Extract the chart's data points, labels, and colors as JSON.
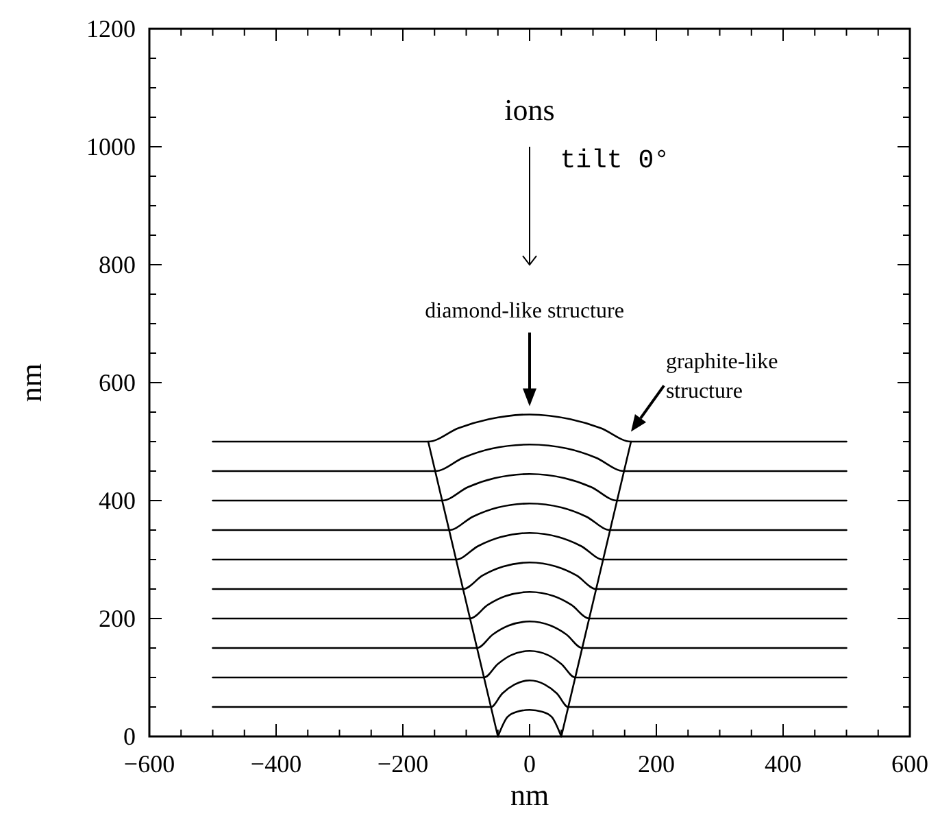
{
  "chart_data": {
    "type": "line",
    "xlabel": "nm",
    "ylabel": "nm",
    "xlim": [
      -600,
      600
    ],
    "ylim": [
      0,
      1200
    ],
    "xticks": [
      -600,
      {
        "value": -550,
        "label": null
      },
      {
        "value": -500,
        "label": null
      },
      {
        "value": -450,
        "label": null
      },
      -400,
      {
        "value": -350,
        "label": null
      },
      {
        "value": -300,
        "label": null
      },
      {
        "value": -250,
        "label": null
      },
      -200,
      {
        "value": -150,
        "label": null
      },
      {
        "value": -100,
        "label": null
      },
      {
        "value": -50,
        "label": null
      },
      0,
      {
        "value": 50,
        "label": null
      },
      {
        "value": 100,
        "label": null
      },
      {
        "value": 150,
        "label": null
      },
      200,
      {
        "value": 250,
        "label": null
      },
      {
        "value": 300,
        "label": null
      },
      {
        "value": 350,
        "label": null
      },
      400,
      {
        "value": 450,
        "label": null
      },
      {
        "value": 500,
        "label": null
      },
      {
        "value": 550,
        "label": null
      },
      600
    ],
    "yticks": [
      0,
      {
        "value": 50,
        "label": null
      },
      {
        "value": 100,
        "label": null
      },
      {
        "value": 150,
        "label": null
      },
      200,
      {
        "value": 250,
        "label": null
      },
      {
        "value": 300,
        "label": null
      },
      {
        "value": 350,
        "label": null
      },
      400,
      {
        "value": 450,
        "label": null
      },
      {
        "value": 500,
        "label": null
      },
      {
        "value": 550,
        "label": null
      },
      600,
      {
        "value": 650,
        "label": null
      },
      {
        "value": 700,
        "label": null
      },
      {
        "value": 750,
        "label": null
      },
      800,
      {
        "value": 850,
        "label": null
      },
      {
        "value": 900,
        "label": null
      },
      {
        "value": 950,
        "label": null
      },
      1000,
      {
        "value": 1050,
        "label": null
      },
      {
        "value": 1100,
        "label": null
      },
      {
        "value": 1150,
        "label": null
      },
      1200
    ],
    "grid": false,
    "marker": "none",
    "line_style": "solid",
    "annotations": [
      "ions",
      "tilt  0°",
      "diamond-like structure",
      "graphite-like\nstructure"
    ],
    "series": [
      {
        "color": "#000000",
        "x": [
          -50,
          -35,
          -20,
          0,
          20,
          35,
          50
        ],
        "values": [
          0,
          33,
          42,
          45,
          42,
          33,
          0
        ]
      },
      {
        "color": "#000000",
        "x": [
          -500,
          -61,
          -43,
          -24,
          0,
          24,
          43,
          61,
          500
        ],
        "values": [
          50,
          50,
          73,
          88,
          95,
          88,
          73,
          50,
          50
        ]
      },
      {
        "color": "#000000",
        "x": [
          -500,
          -72,
          -50,
          -29,
          0,
          29,
          50,
          72,
          500
        ],
        "values": [
          100,
          100,
          123,
          138,
          145,
          138,
          123,
          100,
          100
        ]
      },
      {
        "color": "#000000",
        "x": [
          -500,
          -83,
          -58,
          -33,
          0,
          33,
          58,
          83,
          500
        ],
        "values": [
          150,
          150,
          173,
          188,
          195,
          188,
          173,
          150,
          150
        ]
      },
      {
        "color": "#000000",
        "x": [
          -500,
          -94,
          -66,
          -38,
          0,
          38,
          66,
          94,
          500
        ],
        "values": [
          200,
          200,
          223,
          238,
          245,
          238,
          223,
          200,
          200
        ]
      },
      {
        "color": "#000000",
        "x": [
          -500,
          -105,
          -74,
          -42,
          0,
          42,
          74,
          105,
          500
        ],
        "values": [
          250,
          250,
          273,
          288,
          295,
          288,
          273,
          250,
          250
        ]
      },
      {
        "color": "#000000",
        "x": [
          -500,
          -116,
          -81,
          -46,
          0,
          46,
          81,
          116,
          500
        ],
        "values": [
          300,
          300,
          323,
          338,
          345,
          338,
          323,
          300,
          300
        ]
      },
      {
        "color": "#000000",
        "x": [
          -500,
          -127,
          -89,
          -51,
          0,
          51,
          89,
          127,
          500
        ],
        "values": [
          350,
          350,
          373,
          388,
          395,
          388,
          373,
          350,
          350
        ]
      },
      {
        "color": "#000000",
        "x": [
          -500,
          -138,
          -97,
          -55,
          0,
          55,
          97,
          138,
          500
        ],
        "values": [
          400,
          400,
          423,
          438,
          445,
          438,
          423,
          400,
          400
        ]
      },
      {
        "color": "#000000",
        "x": [
          -500,
          -149,
          -104,
          -60,
          0,
          60,
          104,
          149,
          500
        ],
        "values": [
          450,
          450,
          473,
          488,
          495,
          488,
          473,
          450,
          450
        ]
      },
      {
        "color": "#000000",
        "x": [
          -500,
          -160,
          -112,
          -64,
          0,
          64,
          112,
          160,
          500
        ],
        "values": [
          500,
          500,
          523,
          538,
          546,
          538,
          523,
          500,
          500
        ]
      },
      {
        "color": "#000000",
        "x": [
          -50,
          -105,
          -160
        ],
        "values": [
          0,
          250,
          500
        ]
      },
      {
        "color": "#000000",
        "x": [
          50,
          105,
          160
        ],
        "values": [
          0,
          250,
          500
        ]
      }
    ]
  }
}
